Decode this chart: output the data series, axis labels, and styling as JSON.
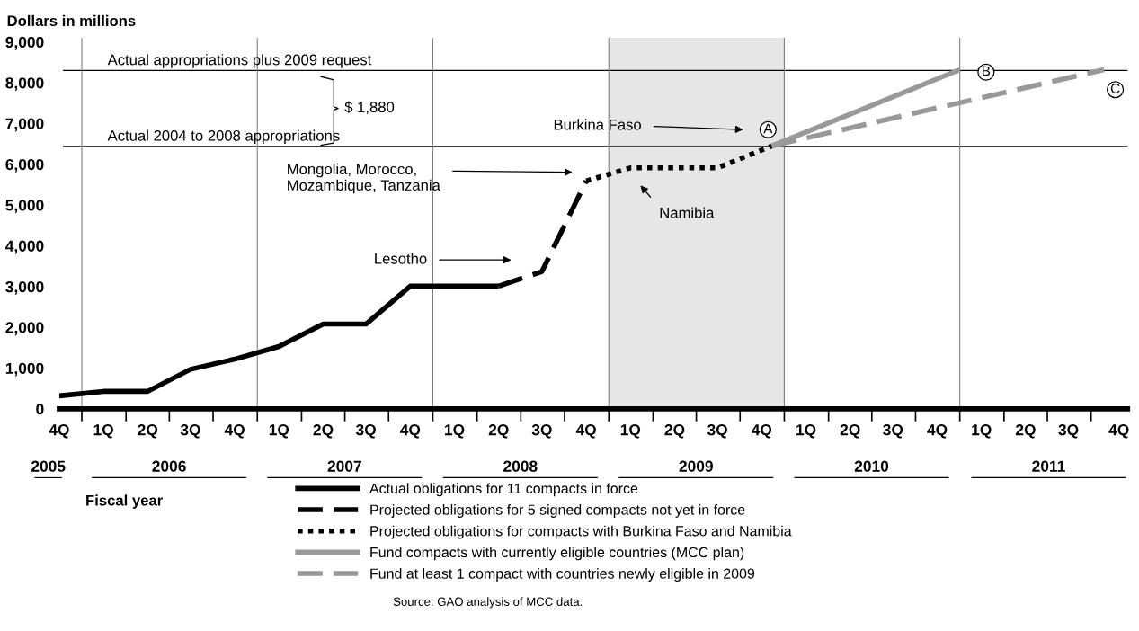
{
  "chart_data": {
    "type": "line",
    "xlabel": "Fiscal year",
    "ylabel": "Dollars in millions",
    "xlim": [
      "2005-08-15",
      "2011-09-15"
    ],
    "ylim": [
      0,
      9100
    ],
    "xticks": [
      {
        "value": "2005-08-15",
        "label": "4Q"
      },
      {
        "value": "2005-11-15",
        "label": "1Q"
      },
      {
        "value": "2006-02-15",
        "label": "2Q"
      },
      {
        "value": "2006-05-15",
        "label": "3Q"
      },
      {
        "value": "2006-08-15",
        "label": "4Q"
      },
      {
        "value": "2006-11-15",
        "label": "1Q"
      },
      {
        "value": "2007-02-15",
        "label": "2Q"
      },
      {
        "value": "2007-05-15",
        "label": "3Q"
      },
      {
        "value": "2007-08-15",
        "label": "4Q"
      },
      {
        "value": "2007-11-15",
        "label": "1Q"
      },
      {
        "value": "2008-02-15",
        "label": "2Q"
      },
      {
        "value": "2008-05-15",
        "label": "3Q"
      },
      {
        "value": "2008-08-15",
        "label": "4Q"
      },
      {
        "value": "2008-11-15",
        "label": "1Q"
      },
      {
        "value": "2009-02-15",
        "label": "2Q"
      },
      {
        "value": "2009-05-15",
        "label": "3Q"
      },
      {
        "value": "2009-08-15",
        "label": "4Q"
      },
      {
        "value": "2009-11-15",
        "label": "1Q"
      },
      {
        "value": "2010-02-15",
        "label": "2Q"
      },
      {
        "value": "2010-05-15",
        "label": "3Q"
      },
      {
        "value": "2010-08-15",
        "label": "4Q"
      },
      {
        "value": "2010-11-15",
        "label": "1Q"
      },
      {
        "value": "2011-02-15",
        "label": "2Q"
      },
      {
        "value": "2011-05-15",
        "label": "3Q"
      },
      {
        "value": "2011-08-28",
        "label": "4Q"
      },
      {
        "value": "2005-10-01",
        "label": null
      },
      {
        "value": "2006-01-01",
        "label": null
      },
      {
        "value": "2006-04-01",
        "label": null
      },
      {
        "value": "2006-07-01",
        "label": null
      },
      {
        "value": "2006-10-01",
        "label": null
      },
      {
        "value": "2007-01-01",
        "label": null
      },
      {
        "value": "2007-04-01",
        "label": null
      },
      {
        "value": "2007-07-01",
        "label": null
      },
      {
        "value": "2007-10-01",
        "label": null
      },
      {
        "value": "2008-01-01",
        "label": null
      },
      {
        "value": "2008-04-01",
        "label": null
      },
      {
        "value": "2008-07-01",
        "label": null
      },
      {
        "value": "2008-10-01",
        "label": null
      },
      {
        "value": "2009-01-01",
        "label": null
      },
      {
        "value": "2009-04-01",
        "label": null
      },
      {
        "value": "2009-07-01",
        "label": null
      },
      {
        "value": "2009-10-01",
        "label": null
      },
      {
        "value": "2010-01-01",
        "label": null
      },
      {
        "value": "2010-04-01",
        "label": null
      },
      {
        "value": "2010-07-01",
        "label": null
      },
      {
        "value": "2010-10-01",
        "label": null
      },
      {
        "value": "2011-01-01",
        "label": null
      },
      {
        "value": "2011-04-01",
        "label": null
      },
      {
        "value": "2011-07-01",
        "label": null
      }
    ],
    "yticks": [
      {
        "value": 0,
        "label": "0"
      },
      {
        "value": 1000,
        "label": "1,000"
      },
      {
        "value": 2000,
        "label": "2,000"
      },
      {
        "value": 3000,
        "label": "3,000"
      },
      {
        "value": 4000,
        "label": "4,000"
      },
      {
        "value": 5000,
        "label": "5,000"
      },
      {
        "value": 6000,
        "label": "6,000"
      },
      {
        "value": 7000,
        "label": "7,000"
      },
      {
        "value": 8000,
        "label": "8,000"
      },
      {
        "value": 9000,
        "label": "9,000"
      }
    ],
    "grid": false,
    "legend": "bottom",
    "marker": "none",
    "series": [
      {
        "name": "Actual obligations for 11 compacts in force",
        "color": "#000000",
        "line_style": "solid",
        "x": [
          "2005-08-15",
          "2005-11-15",
          "2006-02-15",
          "2006-05-15",
          "2006-08-15",
          "2006-11-15",
          "2007-02-15",
          "2007-05-15",
          "2007-08-15",
          "2008-02-15"
        ],
        "values": [
          320,
          430,
          430,
          970,
          1220,
          1530,
          2080,
          2080,
          3010,
          3010
        ]
      },
      {
        "name": "Projected obligations for 5 signed compacts not yet in force",
        "color": "#000000",
        "line_style": "dashed",
        "x": [
          "2008-02-15",
          "2008-05-15",
          "2008-08-15"
        ],
        "values": [
          3010,
          3370,
          5590
        ]
      },
      {
        "name": "Projected obligations for compacts with Burkina Faso and Namibia",
        "color": "#000000",
        "line_style": "dotted",
        "x": [
          "2008-08-15",
          "2008-11-15",
          "2009-05-15",
          "2009-09-05"
        ],
        "values": [
          5590,
          5910,
          5910,
          6450
        ]
      },
      {
        "name": "Fund compacts with currently eligible countries (MCC plan)",
        "color": "#999999",
        "line_style": "solid",
        "x": [
          "2009-09-05",
          "2010-10-01"
        ],
        "values": [
          6450,
          8320
        ]
      },
      {
        "name": "Fund at least 1 compact with countries newly eligible in 2009",
        "color": "#999999",
        "line_style": "dashed",
        "x": [
          "2009-09-05",
          "2011-07-28"
        ],
        "values": [
          6450,
          8320
        ]
      }
    ],
    "ref_lines": [
      {
        "axis": "y",
        "value": 8300,
        "label": "Actual appropriations plus 2009 request",
        "color": "#000000"
      },
      {
        "axis": "y",
        "value": 6440,
        "label": "Actual 2004 to 2008 appropriations",
        "color": "#000000"
      },
      {
        "axis": "x",
        "value": "2005-10-01",
        "color": "#808080"
      },
      {
        "axis": "x",
        "value": "2006-10-01",
        "color": "#808080"
      },
      {
        "axis": "x",
        "value": "2007-10-01",
        "color": "#808080"
      },
      {
        "axis": "x",
        "value": "2008-10-01",
        "color": "#808080"
      },
      {
        "axis": "x",
        "value": "2009-10-01",
        "color": "#808080"
      },
      {
        "axis": "x",
        "value": "2010-10-01",
        "color": "#808080"
      }
    ],
    "bands": [
      {
        "axis": "x",
        "from": "2008-10-01",
        "to": "2009-10-01",
        "color": "#e6e6e6"
      }
    ],
    "annotations": [
      "2005",
      "2006",
      "2007",
      "2008",
      "2009",
      "2010",
      "2011",
      "Lesotho",
      "Mongolia, Morocco,\nMozambique, Tanzania",
      "Namibia",
      "Burkina Faso",
      {
        "text": "A",
        "x": "2009-09-05",
        "y": 6450
      },
      {
        "text": "B",
        "x": "2010-10-01",
        "y": 8320
      },
      {
        "text": "C",
        "x": "2011-07-28",
        "y": 8320
      },
      "$ 1,880",
      "Source: GAO analysis of MCC data."
    ]
  }
}
